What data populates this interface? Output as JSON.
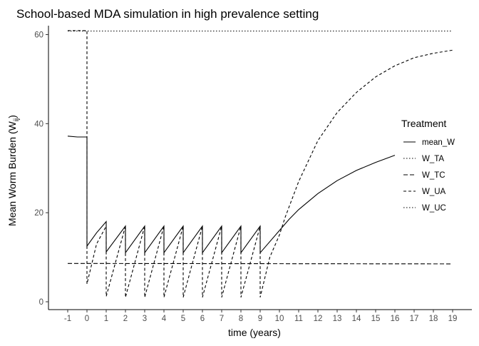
{
  "chart_data": {
    "type": "line",
    "title": "School-based MDA simulation in high prevalence setting",
    "xlabel": "time (years)",
    "ylabel_main": "Mean Worm Burden (W",
    "ylabel_sub": "ij",
    "ylabel_close": ")",
    "xlim": [
      -1,
      19
    ],
    "ylim": [
      0,
      62
    ],
    "x_ticks": [
      -1,
      0,
      1,
      2,
      3,
      4,
      5,
      6,
      7,
      8,
      9,
      10,
      11,
      12,
      13,
      14,
      15,
      16,
      17,
      18,
      19
    ],
    "y_ticks": [
      0,
      20,
      40,
      60
    ],
    "grid": false,
    "legend": {
      "title": "Treatment",
      "placement": "right"
    },
    "series": [
      {
        "name": "mean_W",
        "dash": "solid"
      },
      {
        "name": "W_TA",
        "dash": "dotted"
      },
      {
        "name": "W_TC",
        "dash": "dashed-long"
      },
      {
        "name": "W_UA",
        "dash": "dashed"
      },
      {
        "name": "W_UC",
        "dash": "dotted"
      }
    ],
    "series_points": {
      "mean_W": [
        [
          -1,
          37.2
        ],
        [
          -0.5,
          37
        ],
        [
          0,
          37
        ],
        [
          0,
          12.5
        ],
        [
          0.5,
          15.5
        ],
        [
          1,
          18
        ],
        [
          1,
          11.2
        ],
        [
          2,
          17
        ],
        [
          2,
          11
        ],
        [
          3,
          17
        ],
        [
          3,
          11
        ],
        [
          4,
          17
        ],
        [
          4,
          11
        ],
        [
          5,
          17
        ],
        [
          5,
          11
        ],
        [
          6,
          17
        ],
        [
          6,
          11
        ],
        [
          7,
          17
        ],
        [
          7,
          11
        ],
        [
          8,
          17
        ],
        [
          8,
          11
        ],
        [
          9,
          17
        ],
        [
          9,
          11
        ],
        [
          10,
          16
        ],
        [
          10.5,
          18.5
        ],
        [
          11,
          20.7
        ],
        [
          12,
          24.3
        ],
        [
          13,
          27.2
        ],
        [
          14,
          29.5
        ],
        [
          15,
          31.3
        ],
        [
          16,
          32.9
        ]
      ],
      "W_TA": [
        [
          -1,
          60.8
        ],
        [
          19,
          60.8
        ]
      ],
      "W_TC": [
        [
          -1,
          8.6
        ],
        [
          19,
          8.5
        ]
      ],
      "W_UA": [
        [
          -1,
          60.9
        ],
        [
          0,
          60.9
        ],
        [
          0,
          4
        ],
        [
          0.5,
          13
        ],
        [
          1,
          17
        ],
        [
          1,
          1.2
        ],
        [
          2,
          17
        ],
        [
          2,
          1
        ],
        [
          3,
          17
        ],
        [
          3,
          1
        ],
        [
          4,
          17
        ],
        [
          4,
          1
        ],
        [
          5,
          17
        ],
        [
          5,
          1
        ],
        [
          6,
          17
        ],
        [
          6,
          1
        ],
        [
          7,
          17
        ],
        [
          7,
          1
        ],
        [
          8,
          17
        ],
        [
          8,
          1
        ],
        [
          9,
          17
        ],
        [
          9,
          1
        ],
        [
          9.5,
          10
        ],
        [
          10,
          15
        ],
        [
          10.3,
          19
        ],
        [
          11,
          27
        ],
        [
          12,
          36.2
        ],
        [
          13,
          42.5
        ],
        [
          14,
          47
        ],
        [
          15,
          50.5
        ],
        [
          16,
          53
        ],
        [
          17,
          54.8
        ],
        [
          18,
          55.8
        ],
        [
          19,
          56.5
        ]
      ],
      "W_UC": []
    }
  }
}
